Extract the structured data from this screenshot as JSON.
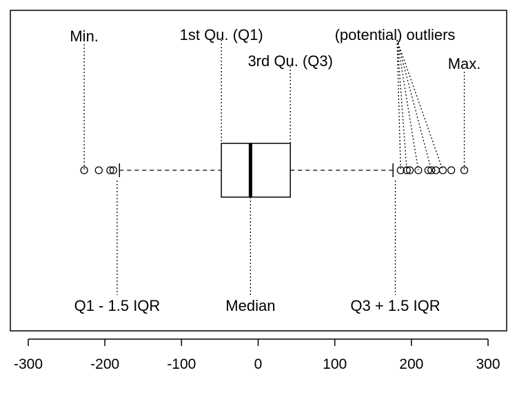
{
  "chart_data": {
    "type": "boxplot",
    "orientation": "horizontal",
    "xlim": [
      -300,
      300
    ],
    "x_ticks": [
      -300,
      -200,
      -100,
      0,
      100,
      200,
      300
    ],
    "box": {
      "min": -227,
      "whisker_low": -181,
      "q1": -48,
      "median": -10,
      "q3": 42,
      "whisker_high": 176,
      "max": 269
    },
    "outliers_low": [
      -227,
      -208,
      -193,
      -189
    ],
    "outliers_high": [
      186,
      194,
      198,
      209,
      222,
      226,
      232,
      241,
      252,
      269
    ],
    "annotations": [
      {
        "id": "min",
        "text": "Min.",
        "x": -227
      },
      {
        "id": "q1",
        "text": "1st Qu. (Q1)",
        "x": -48
      },
      {
        "id": "q3",
        "text": "3rd Qu. (Q3)",
        "x": 42
      },
      {
        "id": "max",
        "text": "Max.",
        "x": 269
      },
      {
        "id": "outliers",
        "text": "(potential) outliers",
        "x": [
          186,
          194,
          209,
          226,
          241
        ]
      },
      {
        "id": "lower-fence",
        "text": "Q1 - 1.5 IQR",
        "x": -184
      },
      {
        "id": "median",
        "text": "Median",
        "x": -10
      },
      {
        "id": "upper-fence",
        "text": "Q3 + 1.5 IQR",
        "x": 179
      }
    ]
  }
}
